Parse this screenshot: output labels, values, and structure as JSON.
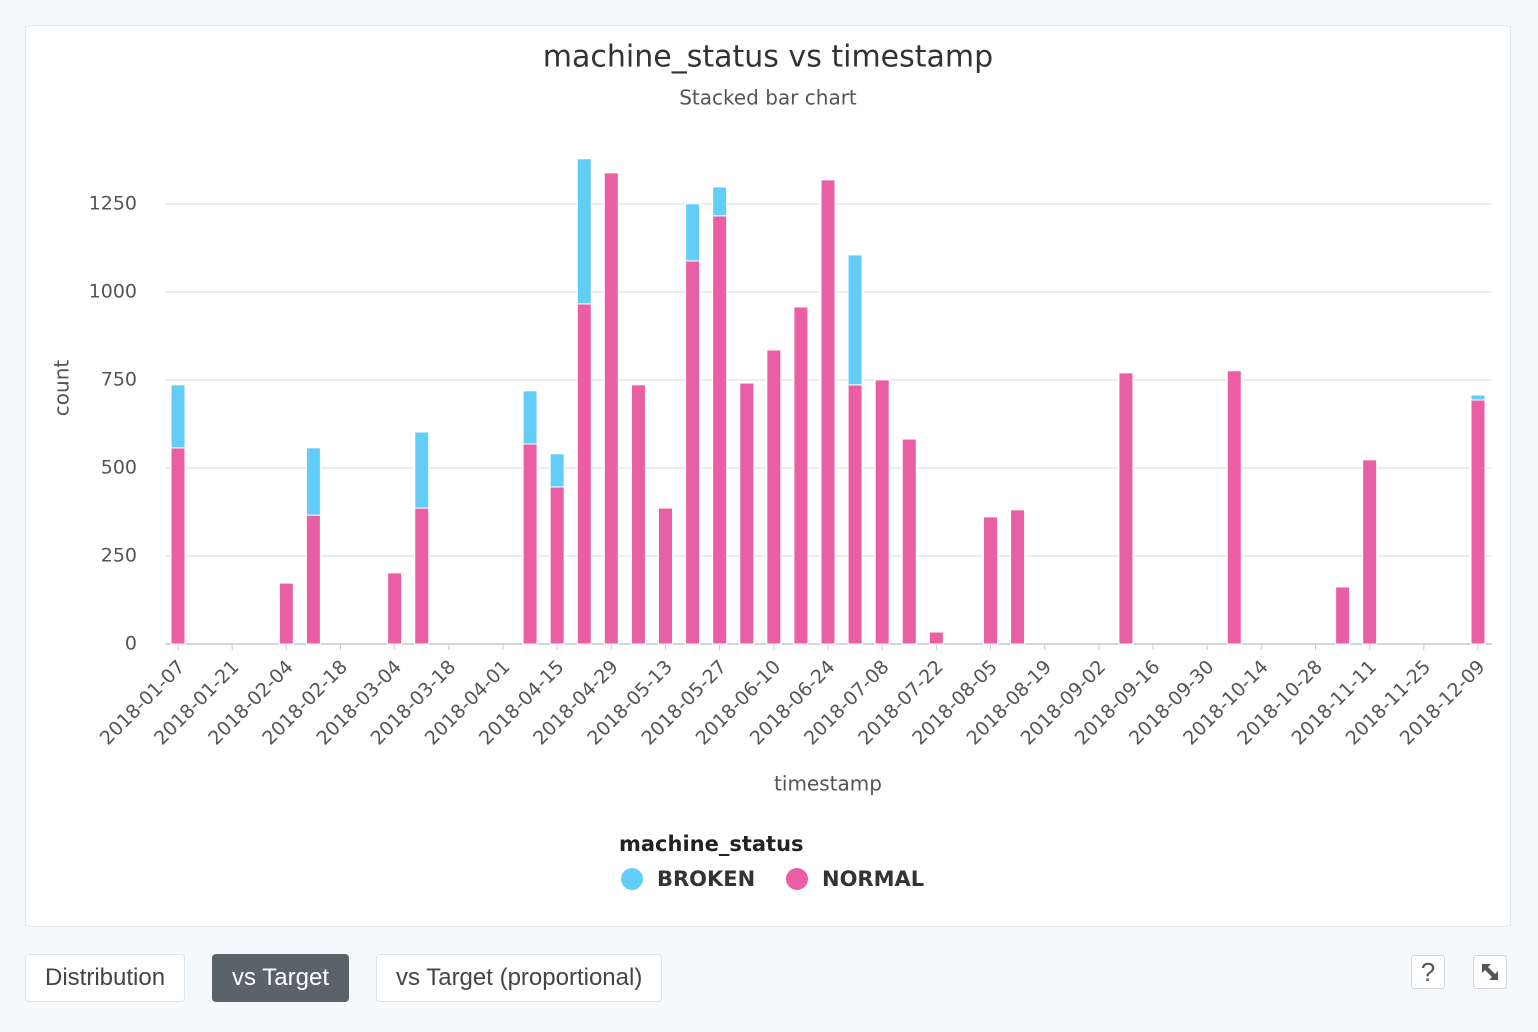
{
  "chart_data": {
    "type": "stacked_bar",
    "title": "machine_status vs timestamp",
    "subtitle": "Stacked bar chart",
    "x_label": "timestamp",
    "y_label": "count",
    "legend_title": "machine_status",
    "x": [
      "2018-01-07",
      "2018-02-04",
      "2018-02-11",
      "2018-03-04",
      "2018-03-11",
      "2018-04-08",
      "2018-04-15",
      "2018-04-22",
      "2018-04-29",
      "2018-05-06",
      "2018-05-13",
      "2018-05-20",
      "2018-05-27",
      "2018-06-03",
      "2018-06-10",
      "2018-06-17",
      "2018-06-24",
      "2018-07-01",
      "2018-07-08",
      "2018-07-15",
      "2018-07-22",
      "2018-08-05",
      "2018-08-12",
      "2018-09-09",
      "2018-10-07",
      "2018-11-04",
      "2018-11-11",
      "2018-12-09"
    ],
    "series": [
      {
        "name": "BROKEN",
        "color": "#62cdf7",
        "values": [
          179,
          0,
          191,
          0,
          216,
          151,
          94,
          412,
          0,
          0,
          0,
          162,
          82,
          0,
          0,
          0,
          0,
          369,
          0,
          0,
          0,
          0,
          0,
          0,
          0,
          0,
          0,
          14
        ]
      },
      {
        "name": "NORMAL",
        "color": "#ea5fa4",
        "values": [
          557,
          173,
          366,
          202,
          386,
          568,
          446,
          966,
          1338,
          736,
          386,
          1088,
          1216,
          741,
          835,
          957,
          1318,
          736,
          750,
          582,
          34,
          361,
          381,
          770,
          776,
          162,
          523,
          693
        ]
      }
    ],
    "stack_order": [
      "NORMAL",
      "BROKEN"
    ],
    "ylim": [
      0,
      1400
    ],
    "yticks": [
      0,
      250,
      500,
      750,
      1000,
      1250
    ],
    "xticks": [
      "2018-01-07",
      "2018-01-21",
      "2018-02-04",
      "2018-02-18",
      "2018-03-04",
      "2018-03-18",
      "2018-04-01",
      "2018-04-15",
      "2018-04-29",
      "2018-05-13",
      "2018-05-27",
      "2018-06-10",
      "2018-06-24",
      "2018-07-08",
      "2018-07-22",
      "2018-08-05",
      "2018-08-19",
      "2018-09-02",
      "2018-09-16",
      "2018-09-30",
      "2018-10-14",
      "2018-10-28",
      "2018-11-11",
      "2018-11-25",
      "2018-12-09"
    ],
    "grid": true
  },
  "controls": {
    "tabs": [
      "Distribution",
      "vs Target",
      "vs Target (proportional)"
    ],
    "active_tab": 1,
    "help": "?"
  }
}
